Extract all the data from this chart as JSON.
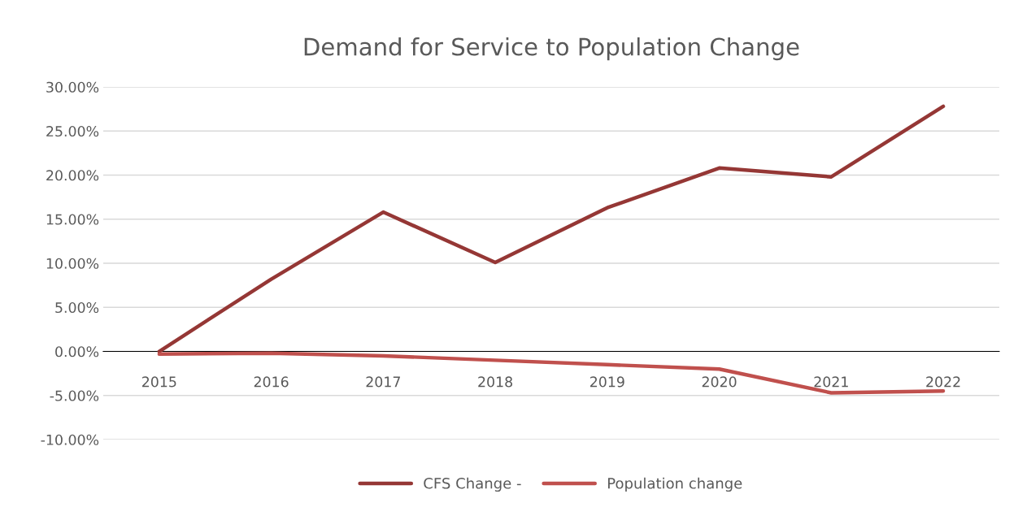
{
  "chart_data": {
    "type": "line",
    "title": "Demand for Service to Population Change",
    "categories": [
      "2015",
      "2016",
      "2017",
      "2018",
      "2019",
      "2020",
      "2021",
      "2022"
    ],
    "series": [
      {
        "name": "CFS Change -",
        "color": "#953735",
        "values": [
          0.0,
          8.2,
          15.8,
          10.1,
          16.3,
          20.8,
          19.8,
          27.8
        ]
      },
      {
        "name": "Population change",
        "color": "#c0504d",
        "values": [
          -0.3,
          -0.2,
          -0.5,
          -1.0,
          -1.5,
          -2.0,
          -4.7,
          -4.5
        ]
      }
    ],
    "ylim": [
      -10,
      30
    ],
    "yticks": [
      {
        "value": -10,
        "label": "-10.00%"
      },
      {
        "value": -5,
        "label": "-5.00%"
      },
      {
        "value": 0,
        "label": "0.00%"
      },
      {
        "value": 5,
        "label": "5.00%"
      },
      {
        "value": 10,
        "label": "10.00%"
      },
      {
        "value": 15,
        "label": "15.00%"
      },
      {
        "value": 20,
        "label": "20.00%"
      },
      {
        "value": 25,
        "label": "25.00%"
      },
      {
        "value": 30,
        "label": "30.00%"
      }
    ],
    "grid": "y",
    "legend": "bottom",
    "marker": "none",
    "line_style": "solid"
  }
}
